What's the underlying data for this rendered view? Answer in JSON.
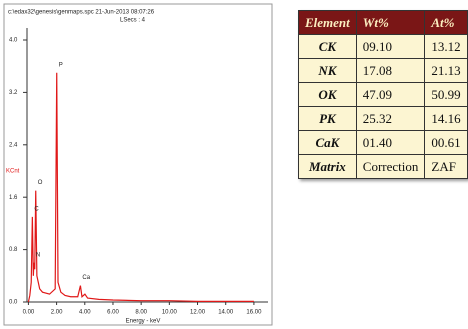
{
  "chart_data": {
    "type": "line",
    "title": "c:\\edax32\\genesis\\genmaps.spc 21-Jun-2013 08:07:26",
    "subtitle": "LSecs : 4",
    "ylabel": "KCnt",
    "xlabel": "Energy - keV",
    "x": [
      0,
      0.1,
      0.2,
      0.28,
      0.35,
      0.39,
      0.45,
      0.52,
      0.6,
      0.8,
      1.0,
      1.5,
      1.9,
      2.01,
      2.1,
      2.3,
      2.6,
      3.0,
      3.5,
      3.69,
      3.8,
      4.01,
      4.2,
      5,
      6,
      8,
      10,
      12,
      16
    ],
    "series": [
      {
        "name": "spectrum",
        "color": "#e01818",
        "values": [
          0,
          0.1,
          0.3,
          1.3,
          0.4,
          0.6,
          0.5,
          1.7,
          0.4,
          0.2,
          0.15,
          0.12,
          0.2,
          3.5,
          0.3,
          0.15,
          0.1,
          0.08,
          0.08,
          0.25,
          0.08,
          0.12,
          0.06,
          0.04,
          0.03,
          0.02,
          0.02,
          0.01,
          0.01
        ]
      }
    ],
    "peak_labels": [
      {
        "label": "C",
        "x": 0.28
      },
      {
        "label": "N",
        "x": 0.39
      },
      {
        "label": "O",
        "x": 0.52
      },
      {
        "label": "P",
        "x": 2.01
      },
      {
        "label": "Ca",
        "x": 3.69
      }
    ],
    "xlim": [
      -0.1,
      17
    ],
    "ylim": [
      0,
      4
    ],
    "xticks": [
      {
        "value": 0,
        "label": "0.00"
      },
      {
        "value": 2,
        "label": "2.00"
      },
      {
        "value": 4,
        "label": "4.00"
      },
      {
        "value": 6,
        "label": "6.00"
      },
      {
        "value": 8,
        "label": "8.00"
      },
      {
        "value": 10,
        "label": "10.00"
      },
      {
        "value": 12,
        "label": "12.00"
      },
      {
        "value": 14,
        "label": "14.00"
      },
      {
        "value": 16,
        "label": "16.00"
      }
    ],
    "yticks": [
      {
        "value": 0,
        "label": "0.0"
      },
      0.8,
      1.6,
      2.4,
      3.2,
      {
        "value": 4,
        "label": "4.0"
      }
    ]
  },
  "table": {
    "header": [
      "Element",
      "Wt%",
      "At%"
    ],
    "rows": [
      [
        "CK",
        "09.10",
        "13.12"
      ],
      [
        "NK",
        "17.08",
        "21.13"
      ],
      [
        "OK",
        "47.09",
        "50.99"
      ],
      [
        "PK",
        "25.32",
        "14.16"
      ],
      [
        "CaK",
        "01.40",
        "00.61"
      ],
      [
        "Matrix",
        "Correction",
        "ZAF"
      ]
    ]
  }
}
